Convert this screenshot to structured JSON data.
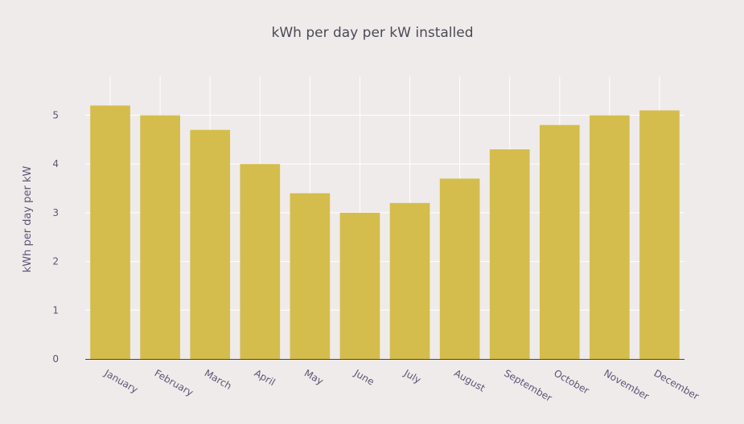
{
  "chart_data": {
    "type": "bar",
    "title": "kWh per day per kW installed",
    "xlabel": "",
    "ylabel": "kWh per day per kW",
    "categories": [
      "January",
      "February",
      "March",
      "April",
      "May",
      "June",
      "July",
      "August",
      "September",
      "October",
      "November",
      "December"
    ],
    "values": [
      5.2,
      5.0,
      4.7,
      4.0,
      3.4,
      3.0,
      3.2,
      3.7,
      4.3,
      4.8,
      5.0,
      5.1
    ],
    "ylim": [
      0,
      5.8
    ],
    "yticks": [
      "0",
      "1",
      "2",
      "3",
      "4",
      "5"
    ],
    "grid": true,
    "legend": "none",
    "bar_color": "#d4bd4c",
    "background_color": "#efebea"
  }
}
